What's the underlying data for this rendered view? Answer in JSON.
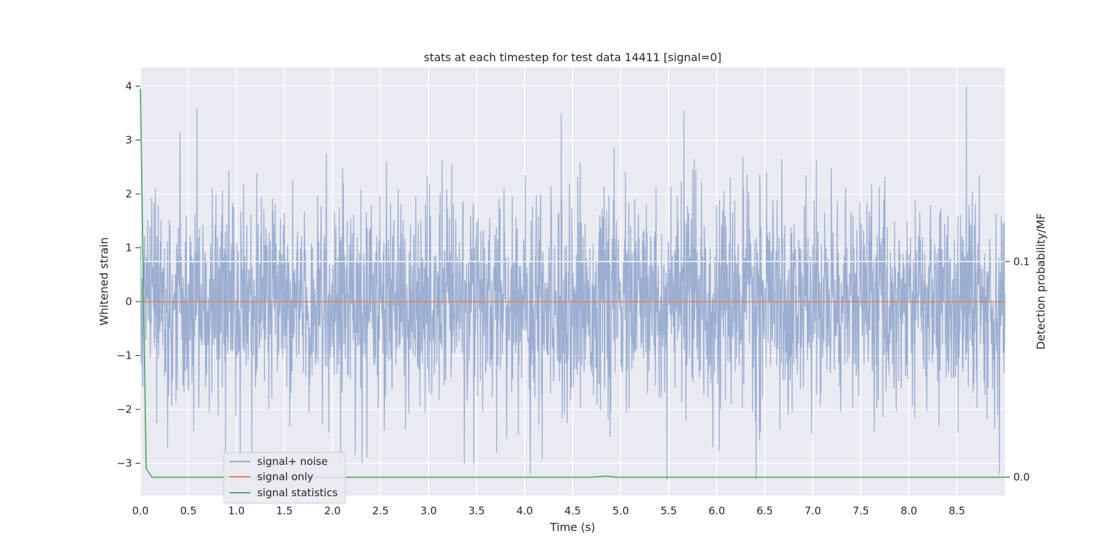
{
  "chart_data": {
    "type": "line",
    "title": "stats at each timestep for test data 14411 [signal=0]",
    "xlabel": "Time (s)",
    "ylabel": "Whitened strain",
    "y2label": "Detection probability/MF",
    "xlim": [
      0.0,
      9.0
    ],
    "ylim": [
      -3.6,
      4.35
    ],
    "y2lim": [
      -0.0085,
      0.19
    ],
    "xticks": [
      0.0,
      0.5,
      1.0,
      1.5,
      2.0,
      2.5,
      3.0,
      3.5,
      4.0,
      4.5,
      5.0,
      5.5,
      6.0,
      6.5,
      7.0,
      7.5,
      8.0,
      8.5
    ],
    "xtick_labels": [
      "0.0",
      "0.5",
      "1.0",
      "1.5",
      "2.0",
      "2.5",
      "3.0",
      "3.5",
      "4.0",
      "4.5",
      "5.0",
      "5.5",
      "6.0",
      "6.5",
      "7.0",
      "7.5",
      "8.0",
      "8.5"
    ],
    "yticks": [
      4,
      3,
      2,
      1,
      0,
      -1,
      -2,
      -3
    ],
    "ytick_labels": [
      "4",
      "3",
      "2",
      "1",
      "0",
      "−1",
      "−2",
      "−3"
    ],
    "y2ticks": [
      0.1,
      0.0
    ],
    "y2tick_labels": [
      "0.1",
      "0.0"
    ],
    "grid": true,
    "legend": {
      "placement": "lower-left",
      "entries": [
        "signal+ noise",
        "signal only",
        "signal statistics"
      ]
    },
    "series": [
      {
        "name": "signal+ noise",
        "axis": "left",
        "color": "#4c72b0",
        "style": "dense noise, approx. gaussian, sigma ~0.9",
        "notable_peaks": [
          {
            "x": 0.59,
            "y": 3.6
          },
          {
            "x": 4.38,
            "y": 3.5
          },
          {
            "x": 5.66,
            "y": 3.55
          },
          {
            "x": 8.6,
            "y": 4.0
          },
          {
            "x": 1.04,
            "y": -2.85
          },
          {
            "x": 4.06,
            "y": -3.2
          },
          {
            "x": 5.48,
            "y": -3.3
          },
          {
            "x": 6.41,
            "y": -3.3
          },
          {
            "x": 8.94,
            "y": -3.2
          }
        ]
      },
      {
        "name": "signal only",
        "axis": "left",
        "color": "#dd8452",
        "x": [
          0.0,
          9.0
        ],
        "y": [
          0.0,
          0.0
        ]
      },
      {
        "name": "signal statistics",
        "axis": "right",
        "color": "#55a868",
        "x": [
          0.0,
          0.06,
          0.12,
          4.7,
          4.85,
          4.95,
          9.0
        ],
        "y": [
          0.18,
          0.004,
          0.0,
          0.0,
          0.0005,
          0.0,
          0.0
        ]
      }
    ]
  }
}
